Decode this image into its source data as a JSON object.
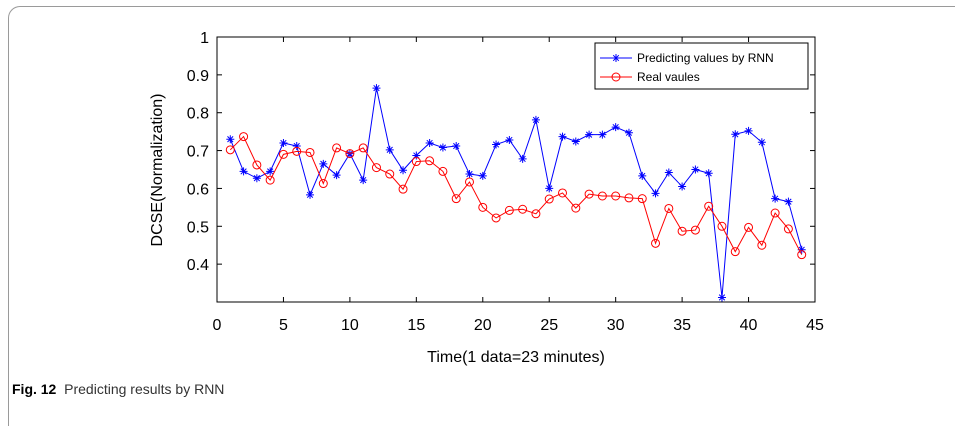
{
  "caption": {
    "label": "Fig. 12",
    "text": "Predicting results by RNN"
  },
  "chart_data": {
    "type": "line",
    "title": "",
    "xlabel": "Time(1 data=23 minutes)",
    "ylabel": "DCSE(Normalization)",
    "xlim": [
      0,
      45
    ],
    "ylim": [
      0.3,
      1
    ],
    "xticks": [
      0,
      5,
      10,
      15,
      20,
      25,
      30,
      35,
      40,
      45
    ],
    "yticks": [
      0.4,
      0.5,
      0.6,
      0.7,
      0.8,
      0.9,
      1
    ],
    "ytick_labels": [
      "0.4",
      "0.5",
      "0.6",
      "0.7",
      "0.8",
      "0.9",
      "1"
    ],
    "grid": false,
    "legend_position": "top-right",
    "x": [
      1,
      2,
      3,
      4,
      5,
      6,
      7,
      8,
      9,
      10,
      11,
      12,
      13,
      14,
      15,
      16,
      17,
      18,
      19,
      20,
      21,
      22,
      23,
      24,
      25,
      26,
      27,
      28,
      29,
      30,
      31,
      32,
      33,
      34,
      35,
      36,
      37,
      38,
      39,
      40,
      41,
      42,
      43,
      44
    ],
    "series": [
      {
        "name": "Predicting values by RNN",
        "color": "#0000ff",
        "marker": "star",
        "values": [
          0.73,
          0.645,
          0.627,
          0.645,
          0.72,
          0.712,
          0.583,
          0.665,
          0.635,
          0.692,
          0.622,
          0.865,
          0.702,
          0.648,
          0.687,
          0.72,
          0.708,
          0.712,
          0.638,
          0.633,
          0.716,
          0.728,
          0.678,
          0.781,
          0.6,
          0.737,
          0.724,
          0.742,
          0.742,
          0.762,
          0.747,
          0.633,
          0.587,
          0.642,
          0.605,
          0.65,
          0.64,
          0.312,
          0.743,
          0.752,
          0.722,
          0.573,
          0.565,
          0.438
        ]
      },
      {
        "name": "Real vaules",
        "color": "#ff0000",
        "marker": "circle",
        "values": [
          0.702,
          0.737,
          0.662,
          0.622,
          0.69,
          0.698,
          0.695,
          0.613,
          0.707,
          0.692,
          0.707,
          0.655,
          0.638,
          0.598,
          0.671,
          0.673,
          0.645,
          0.573,
          0.617,
          0.55,
          0.522,
          0.542,
          0.545,
          0.533,
          0.572,
          0.588,
          0.548,
          0.585,
          0.58,
          0.58,
          0.575,
          0.573,
          0.455,
          0.547,
          0.487,
          0.49,
          0.553,
          0.5,
          0.433,
          0.497,
          0.45,
          0.535,
          0.493,
          0.425
        ]
      }
    ]
  }
}
